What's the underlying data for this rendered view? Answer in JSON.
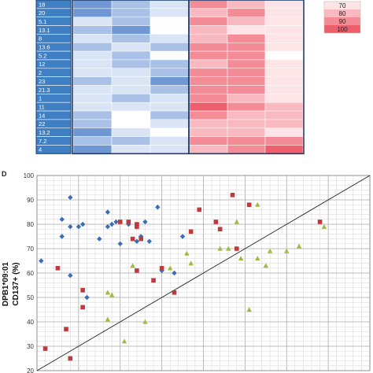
{
  "heatmap": {
    "row_labels": [
      "18",
      "20",
      "5.1",
      "13.1",
      "8",
      "13.6",
      "5.2",
      "12",
      "2",
      "23",
      "21.3",
      "1",
      "11",
      "14",
      "22",
      "13.2",
      "7.2",
      "4"
    ],
    "legend": {
      "values": [
        "70",
        "80",
        "90",
        "100"
      ],
      "colors": [
        "#fde4e6",
        "#f9b9c0",
        "#f38c96",
        "#ec5f6b"
      ]
    },
    "colors": {
      "label_bg": "#3f7fc4",
      "border": "#1f3f6b",
      "blue_scale": [
        "#d9e4f4",
        "#a9c1e6",
        "#6f97d4"
      ],
      "red_scale": [
        "#fde4e6",
        "#f9b9c0",
        "#f38c96",
        "#ec5f6b"
      ]
    },
    "cells": [
      [
        2,
        1,
        0,
        2,
        1,
        0
      ],
      [
        2,
        1,
        0,
        1,
        2,
        0
      ],
      [
        0,
        1,
        -1,
        2,
        1,
        0
      ],
      [
        1,
        2,
        -1,
        1,
        0,
        0
      ],
      [
        0,
        1,
        0,
        1,
        2,
        0
      ],
      [
        1,
        0,
        1,
        2,
        2,
        0
      ],
      [
        0,
        1,
        -1,
        2,
        2,
        -1
      ],
      [
        0,
        1,
        1,
        1,
        2,
        0
      ],
      [
        0,
        0,
        1,
        2,
        2,
        0
      ],
      [
        1,
        0,
        2,
        2,
        2,
        0
      ],
      [
        0,
        0,
        1,
        2,
        2,
        0
      ],
      [
        0,
        1,
        0,
        2,
        1,
        0
      ],
      [
        0,
        0,
        0,
        3,
        2,
        1
      ],
      [
        1,
        -1,
        1,
        2,
        1,
        1
      ],
      [
        1,
        -1,
        0,
        1,
        1,
        1
      ],
      [
        2,
        0,
        -1,
        1,
        1,
        0
      ],
      [
        1,
        1,
        0,
        2,
        2,
        2
      ],
      [
        2,
        0,
        0,
        1,
        2,
        3
      ]
    ]
  },
  "chart_data": {
    "type": "scatter",
    "panel_label": "D",
    "xlim": [
      20,
      100
    ],
    "ylim": [
      20,
      100
    ],
    "y_ticks": [
      20,
      30,
      40,
      50,
      60,
      70,
      80,
      90,
      100
    ],
    "ylabel_line1": "DPB1*09:01",
    "ylabel_line2": "CD137+ (%)",
    "grid": true,
    "reference_line": "y = x",
    "series": [
      {
        "marker": "diamond",
        "color": "#3b6db8",
        "points": [
          [
            21,
            65
          ],
          [
            26,
            82
          ],
          [
            28,
            91
          ],
          [
            26,
            75
          ],
          [
            28,
            59
          ],
          [
            28,
            79
          ],
          [
            30,
            79
          ],
          [
            31,
            80
          ],
          [
            32,
            50
          ],
          [
            35,
            74
          ],
          [
            37,
            85
          ],
          [
            37,
            79
          ],
          [
            39,
            81
          ],
          [
            38,
            80
          ],
          [
            42,
            80
          ],
          [
            40,
            72
          ],
          [
            44,
            73
          ],
          [
            45,
            75
          ],
          [
            46,
            81
          ],
          [
            47,
            73
          ],
          [
            49,
            87
          ],
          [
            50,
            61
          ],
          [
            55,
            75
          ],
          [
            53,
            60
          ]
        ]
      },
      {
        "marker": "square",
        "color": "#c0393b",
        "points": [
          [
            22,
            29
          ],
          [
            25,
            62
          ],
          [
            27,
            37
          ],
          [
            28,
            25
          ],
          [
            31,
            53
          ],
          [
            31,
            46
          ],
          [
            40,
            81
          ],
          [
            42,
            81
          ],
          [
            44,
            79
          ],
          [
            43,
            74
          ],
          [
            45,
            74
          ],
          [
            44,
            61
          ],
          [
            44,
            80
          ],
          [
            48,
            57
          ],
          [
            50,
            62
          ],
          [
            53,
            52
          ],
          [
            57,
            77
          ],
          [
            59,
            86
          ],
          [
            63,
            81
          ],
          [
            64,
            78
          ],
          [
            67,
            92
          ],
          [
            68,
            70
          ],
          [
            71,
            88
          ],
          [
            88,
            81
          ]
        ]
      },
      {
        "marker": "triangle",
        "color": "#9dbb3f",
        "points": [
          [
            37,
            52
          ],
          [
            37,
            41
          ],
          [
            38,
            51
          ],
          [
            41,
            32
          ],
          [
            43,
            63
          ],
          [
            46,
            40
          ],
          [
            52,
            62
          ],
          [
            56,
            68
          ],
          [
            57,
            64
          ],
          [
            64,
            70
          ],
          [
            66,
            70
          ],
          [
            68,
            81
          ],
          [
            69,
            66
          ],
          [
            71,
            45
          ],
          [
            73,
            66
          ],
          [
            73,
            88
          ],
          [
            75,
            63
          ],
          [
            76,
            69
          ],
          [
            80,
            69
          ],
          [
            83,
            71
          ],
          [
            89,
            79
          ]
        ]
      }
    ]
  }
}
